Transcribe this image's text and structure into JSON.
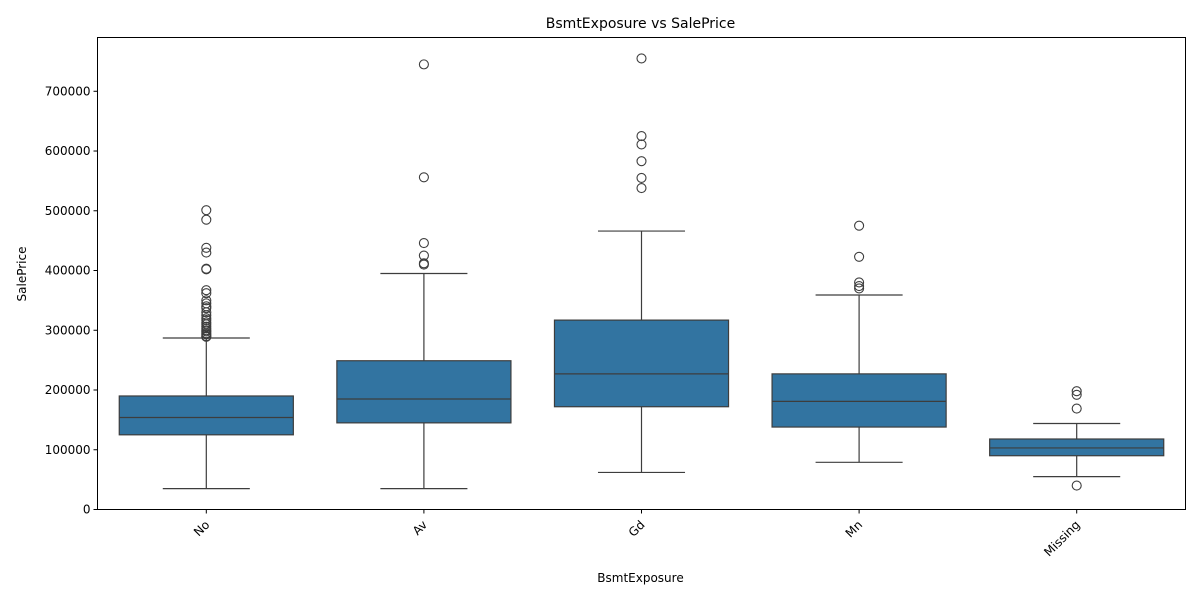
{
  "chart_data": {
    "type": "box",
    "title": "BsmtExposure vs SalePrice",
    "xlabel": "BsmtExposure",
    "ylabel": "SalePrice",
    "ylim": [
      0,
      790000
    ],
    "yticks": [
      0,
      100000,
      200000,
      300000,
      400000,
      500000,
      600000,
      700000
    ],
    "box_color": "#3274a1",
    "line_color": "#3d3d3d",
    "categories": [
      "No",
      "Av",
      "Gd",
      "Mn",
      "Missing"
    ],
    "boxes": [
      {
        "category": "No",
        "whisker_low": 34900,
        "q1": 125000,
        "median": 154000,
        "q3": 190000,
        "whisker_high": 287000,
        "outliers": [
          289000,
          290000,
          293000,
          295000,
          298000,
          300000,
          303000,
          306000,
          310000,
          313000,
          317000,
          320000,
          325000,
          330000,
          337000,
          340000,
          345000,
          350000,
          362000,
          367000,
          402000,
          403000,
          430000,
          438000,
          485000,
          501000
        ]
      },
      {
        "category": "Av",
        "whisker_low": 34900,
        "q1": 145000,
        "median": 185000,
        "q3": 249000,
        "whisker_high": 395000,
        "outliers": [
          410000,
          412000,
          425000,
          446000,
          556000,
          745000
        ]
      },
      {
        "category": "Gd",
        "whisker_low": 62000,
        "q1": 172000,
        "median": 227000,
        "q3": 317000,
        "whisker_high": 466000,
        "outliers": [
          538000,
          555000,
          583000,
          611000,
          625000,
          755000
        ]
      },
      {
        "category": "Mn",
        "whisker_low": 79000,
        "q1": 138000,
        "median": 181000,
        "q3": 227000,
        "whisker_high": 359000,
        "outliers": [
          370000,
          374000,
          380000,
          423000,
          475000
        ]
      },
      {
        "category": "Missing",
        "whisker_low": 55000,
        "q1": 90000,
        "median": 103000,
        "q3": 118000,
        "whisker_high": 144000,
        "outliers": [
          40000,
          169000,
          192000,
          198000
        ]
      }
    ]
  }
}
